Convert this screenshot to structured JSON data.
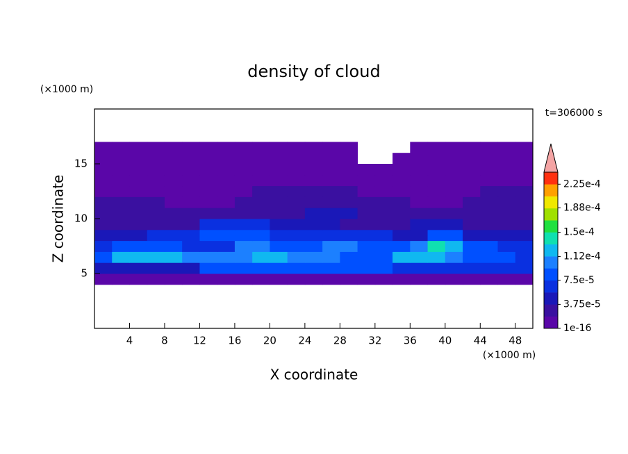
{
  "chart_data": {
    "type": "contour",
    "title": "density of cloud",
    "x_label": "X coordinate",
    "y_label": "Z coordinate",
    "x_unit": "(×1000 m)",
    "y_unit": "(×1000 m)",
    "annotation": "t=306000 s",
    "xlim": [
      0,
      50
    ],
    "ylim": [
      0,
      20
    ],
    "xticks": [
      4,
      8,
      12,
      16,
      20,
      24,
      28,
      32,
      36,
      40,
      44,
      48
    ],
    "yticks": [
      5,
      10,
      15
    ],
    "x": [
      1,
      3,
      5,
      7,
      9,
      11,
      13,
      15,
      17,
      19,
      21,
      23,
      25,
      27,
      29,
      31,
      33,
      35,
      37,
      39,
      41,
      43,
      45,
      47,
      49
    ],
    "z": [
      4.5,
      5.5,
      6.5,
      7.5,
      8.5,
      9.5,
      10.5,
      11.5,
      12.5,
      13.5,
      14.5,
      15.5,
      16.5
    ],
    "values": [
      [
        1e-06,
        1e-06,
        1e-06,
        1e-06,
        1e-06,
        1e-06,
        1e-06,
        1e-06,
        1e-06,
        1e-06,
        1e-06,
        1e-06,
        1e-06,
        1e-06,
        1e-06,
        1e-06,
        1e-06,
        1e-06,
        1e-06,
        1e-06,
        1e-06,
        1e-06,
        1e-06,
        1e-06,
        1e-06
      ],
      [
        4.5e-05,
        4.5e-05,
        4.5e-05,
        4.5e-05,
        4.5e-05,
        4.5e-05,
        8e-05,
        8e-05,
        8e-05,
        8e-05,
        8e-05,
        8e-05,
        8e-05,
        8e-05,
        8e-05,
        8e-05,
        8e-05,
        6.5e-05,
        6.5e-05,
        6.5e-05,
        6.5e-05,
        6.5e-05,
        6.5e-05,
        6.5e-05,
        6.5e-05
      ],
      [
        8e-05,
        0.00012,
        0.00012,
        0.00012,
        0.00012,
        0.0001,
        0.0001,
        0.0001,
        0.0001,
        0.00012,
        0.00012,
        0.0001,
        0.0001,
        0.0001,
        8e-05,
        8e-05,
        8e-05,
        0.00012,
        0.00012,
        0.00012,
        0.0001,
        8e-05,
        8e-05,
        8e-05,
        6.5e-05
      ],
      [
        6.5e-05,
        8e-05,
        8e-05,
        8e-05,
        8e-05,
        6.5e-05,
        6.5e-05,
        6.5e-05,
        0.0001,
        0.0001,
        8e-05,
        8e-05,
        8e-05,
        0.0001,
        0.0001,
        8e-05,
        8e-05,
        8e-05,
        0.0001,
        0.00014,
        0.00012,
        8e-05,
        8e-05,
        6.5e-05,
        6.5e-05
      ],
      [
        4.5e-05,
        4.5e-05,
        4.5e-05,
        6.5e-05,
        6.5e-05,
        6.5e-05,
        8e-05,
        8e-05,
        8e-05,
        8e-05,
        6.5e-05,
        6.5e-05,
        6.5e-05,
        6.5e-05,
        6.5e-05,
        6.5e-05,
        6.5e-05,
        4.5e-05,
        4.5e-05,
        8e-05,
        8e-05,
        4.5e-05,
        4.5e-05,
        4.5e-05,
        4.5e-05
      ],
      [
        2.5e-05,
        2.5e-05,
        2.5e-05,
        2.5e-05,
        2.5e-05,
        2.5e-05,
        6.5e-05,
        6.5e-05,
        6.5e-05,
        6.5e-05,
        4.5e-05,
        4.5e-05,
        4.5e-05,
        4.5e-05,
        2.5e-05,
        2.5e-05,
        2.5e-05,
        2.5e-05,
        4.5e-05,
        4.5e-05,
        4.5e-05,
        2.5e-05,
        2.5e-05,
        2.5e-05,
        2.5e-05
      ],
      [
        2.5e-05,
        2.5e-05,
        2.5e-05,
        2.5e-05,
        2.5e-05,
        2.5e-05,
        2.5e-05,
        2.5e-05,
        2.5e-05,
        2.5e-05,
        2.5e-05,
        2.5e-05,
        4.5e-05,
        4.5e-05,
        4.5e-05,
        2.5e-05,
        2.5e-05,
        2.5e-05,
        2.5e-05,
        2.5e-05,
        2.5e-05,
        2.5e-05,
        2.5e-05,
        2.5e-05,
        2.5e-05
      ],
      [
        2.5e-05,
        2.5e-05,
        2.5e-05,
        2.5e-05,
        1e-06,
        1e-06,
        1e-06,
        1e-06,
        2.5e-05,
        2.5e-05,
        2.5e-05,
        2.5e-05,
        2.5e-05,
        2.5e-05,
        2.5e-05,
        2.5e-05,
        2.5e-05,
        2.5e-05,
        1e-06,
        1e-06,
        1e-06,
        2.5e-05,
        2.5e-05,
        2.5e-05,
        2.5e-05
      ],
      [
        1e-06,
        1e-06,
        1e-06,
        1e-06,
        1e-06,
        1e-06,
        1e-06,
        1e-06,
        1e-06,
        2.5e-05,
        2.5e-05,
        2.5e-05,
        2.5e-05,
        2.5e-05,
        2.5e-05,
        1e-06,
        1e-06,
        1e-06,
        1e-06,
        1e-06,
        1e-06,
        1e-06,
        2.5e-05,
        2.5e-05,
        2.5e-05
      ],
      [
        1e-06,
        1e-06,
        1e-06,
        1e-06,
        1e-06,
        1e-06,
        1e-06,
        1e-06,
        1e-06,
        1e-06,
        1e-06,
        1e-06,
        1e-06,
        1e-06,
        1e-06,
        1e-06,
        1e-06,
        1e-06,
        1e-06,
        1e-06,
        1e-06,
        1e-06,
        1e-06,
        1e-06,
        1e-06
      ],
      [
        1e-06,
        1e-06,
        1e-06,
        1e-06,
        1e-06,
        1e-06,
        1e-06,
        1e-06,
        1e-06,
        1e-06,
        1e-06,
        1e-06,
        1e-06,
        1e-06,
        1e-06,
        1e-06,
        1e-06,
        1e-06,
        1e-06,
        1e-06,
        1e-06,
        1e-06,
        1e-06,
        1e-06,
        1e-06
      ],
      [
        1e-06,
        1e-06,
        1e-06,
        1e-06,
        1e-06,
        1e-06,
        1e-06,
        1e-06,
        1e-06,
        1e-06,
        1e-06,
        1e-06,
        1e-06,
        1e-06,
        1e-06,
        0,
        0,
        1e-06,
        1e-06,
        1e-06,
        1e-06,
        1e-06,
        1e-06,
        1e-06,
        1e-06
      ],
      [
        1e-06,
        1e-06,
        1e-06,
        1e-06,
        1e-06,
        1e-06,
        1e-06,
        1e-06,
        1e-06,
        1e-06,
        1e-06,
        1e-06,
        1e-06,
        1e-06,
        1e-06,
        0,
        0,
        0,
        1e-06,
        1e-06,
        1e-06,
        1e-06,
        1e-06,
        1e-06,
        1e-06
      ]
    ],
    "colorbar": {
      "lim": [
        1e-16,
        0.00024375
      ],
      "colors": [
        "#5a06a8",
        "#3a10a0",
        "#1a18b8",
        "#0a30e0",
        "#0050ff",
        "#1c80ff",
        "#10b8f0",
        "#10e0b0",
        "#20e040",
        "#a0e000",
        "#f0e800",
        "#ffa000",
        "#ff3010"
      ],
      "extend_color": "#f4a4a4",
      "ticks": [
        1e-16,
        {
          "value": 3.75e-05,
          "label": "3.75e-5"
        },
        {
          "value": 7.5e-05,
          "label": "7.5e-5"
        },
        {
          "value": 0.000112,
          "label": "1.12e-4"
        },
        {
          "value": 0.00015,
          "label": "1.5e-4"
        },
        {
          "value": 0.000188,
          "label": "1.88e-4"
        },
        {
          "value": 0.000225,
          "label": "2.25e-4"
        }
      ]
    }
  }
}
